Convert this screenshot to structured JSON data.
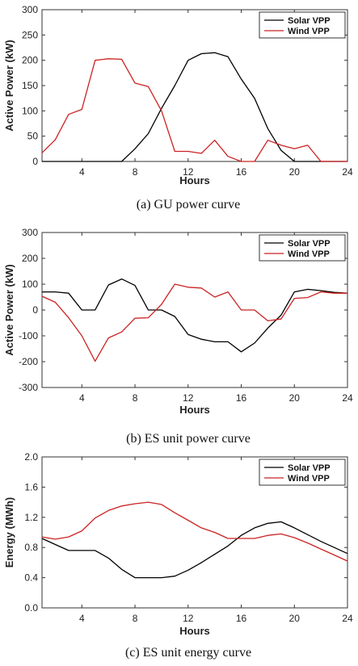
{
  "chart_data": [
    {
      "type": "line",
      "caption": "(a) GU power curve",
      "xlabel": "Hours",
      "ylabel": "Active Power (kW)",
      "xlim": [
        1,
        24
      ],
      "ylim": [
        0,
        300
      ],
      "xticks": [
        "4",
        "8",
        "12",
        "16",
        "20",
        "24"
      ],
      "yticks": [
        "0",
        "50",
        "100",
        "150",
        "200",
        "250",
        "300"
      ],
      "x": [
        1,
        2,
        3,
        4,
        5,
        6,
        7,
        8,
        9,
        10,
        11,
        12,
        13,
        14,
        15,
        16,
        17,
        18,
        19,
        20,
        21,
        22,
        23,
        24
      ],
      "series": [
        {
          "name": "Solar VPP",
          "color": "#000000",
          "values": [
            0,
            0,
            0,
            0,
            0,
            0,
            0,
            25,
            55,
            105,
            150,
            200,
            213,
            215,
            207,
            163,
            125,
            65,
            22,
            0,
            0,
            0,
            0,
            0
          ]
        },
        {
          "name": "Wind VPP",
          "color": "#cc2222",
          "values": [
            17,
            43,
            93,
            103,
            200,
            203,
            202,
            155,
            148,
            100,
            20,
            20,
            16,
            42,
            10,
            0,
            0,
            42,
            32,
            25,
            32,
            0,
            0,
            0
          ]
        }
      ],
      "legend": "top-right",
      "grid": false
    },
    {
      "type": "line",
      "caption": "(b) ES unit power curve",
      "xlabel": "Hours",
      "ylabel": "Active Power (kW)",
      "xlim": [
        1,
        24
      ],
      "ylim": [
        -300,
        300
      ],
      "xticks": [
        "4",
        "8",
        "12",
        "16",
        "20",
        "24"
      ],
      "yticks": [
        "-300",
        "-200",
        "-100",
        "0",
        "100",
        "200",
        "300"
      ],
      "x": [
        1,
        2,
        3,
        4,
        5,
        6,
        7,
        8,
        9,
        10,
        11,
        12,
        13,
        14,
        15,
        16,
        17,
        18,
        19,
        20,
        21,
        22,
        23,
        24
      ],
      "series": [
        {
          "name": "Solar VPP",
          "color": "#000000",
          "values": [
            70,
            70,
            65,
            0,
            0,
            97,
            120,
            95,
            0,
            0,
            -25,
            -95,
            -113,
            -123,
            -123,
            -162,
            -128,
            -70,
            -20,
            70,
            80,
            75,
            68,
            65
          ]
        },
        {
          "name": "Wind VPP",
          "color": "#cc2222",
          "values": [
            53,
            30,
            -30,
            -100,
            -198,
            -108,
            -85,
            -32,
            -30,
            22,
            100,
            88,
            85,
            50,
            70,
            0,
            0,
            -42,
            -35,
            45,
            48,
            70,
            65,
            65
          ]
        }
      ],
      "legend": "top-right",
      "grid": false
    },
    {
      "type": "line",
      "caption": "(c) ES unit energy curve",
      "xlabel": "Hours",
      "ylabel": "Energy (MWh)",
      "xlim": [
        1,
        24
      ],
      "ylim": [
        0,
        2.0
      ],
      "xticks": [
        "4",
        "8",
        "12",
        "16",
        "20",
        "24"
      ],
      "yticks": [
        "0.0",
        "0.4",
        "0.8",
        "1.2",
        "1.6",
        "2.0"
      ],
      "x": [
        1,
        2,
        3,
        4,
        5,
        6,
        7,
        8,
        9,
        10,
        11,
        12,
        13,
        14,
        15,
        16,
        17,
        18,
        19,
        20,
        21,
        22,
        23,
        24
      ],
      "series": [
        {
          "name": "Solar VPP",
          "color": "#000000",
          "values": [
            0.92,
            0.84,
            0.76,
            0.76,
            0.76,
            0.66,
            0.51,
            0.4,
            0.4,
            0.4,
            0.42,
            0.5,
            0.6,
            0.71,
            0.82,
            0.96,
            1.06,
            1.12,
            1.14,
            1.06,
            0.97,
            0.88,
            0.8,
            0.72
          ]
        },
        {
          "name": "Wind VPP",
          "color": "#cc2222",
          "values": [
            0.94,
            0.91,
            0.94,
            1.02,
            1.19,
            1.29,
            1.35,
            1.38,
            1.4,
            1.37,
            1.26,
            1.16,
            1.06,
            1.0,
            0.92,
            0.92,
            0.92,
            0.96,
            0.98,
            0.93,
            0.86,
            0.78,
            0.7,
            0.62
          ]
        }
      ],
      "legend": "top-right",
      "grid": false
    }
  ]
}
